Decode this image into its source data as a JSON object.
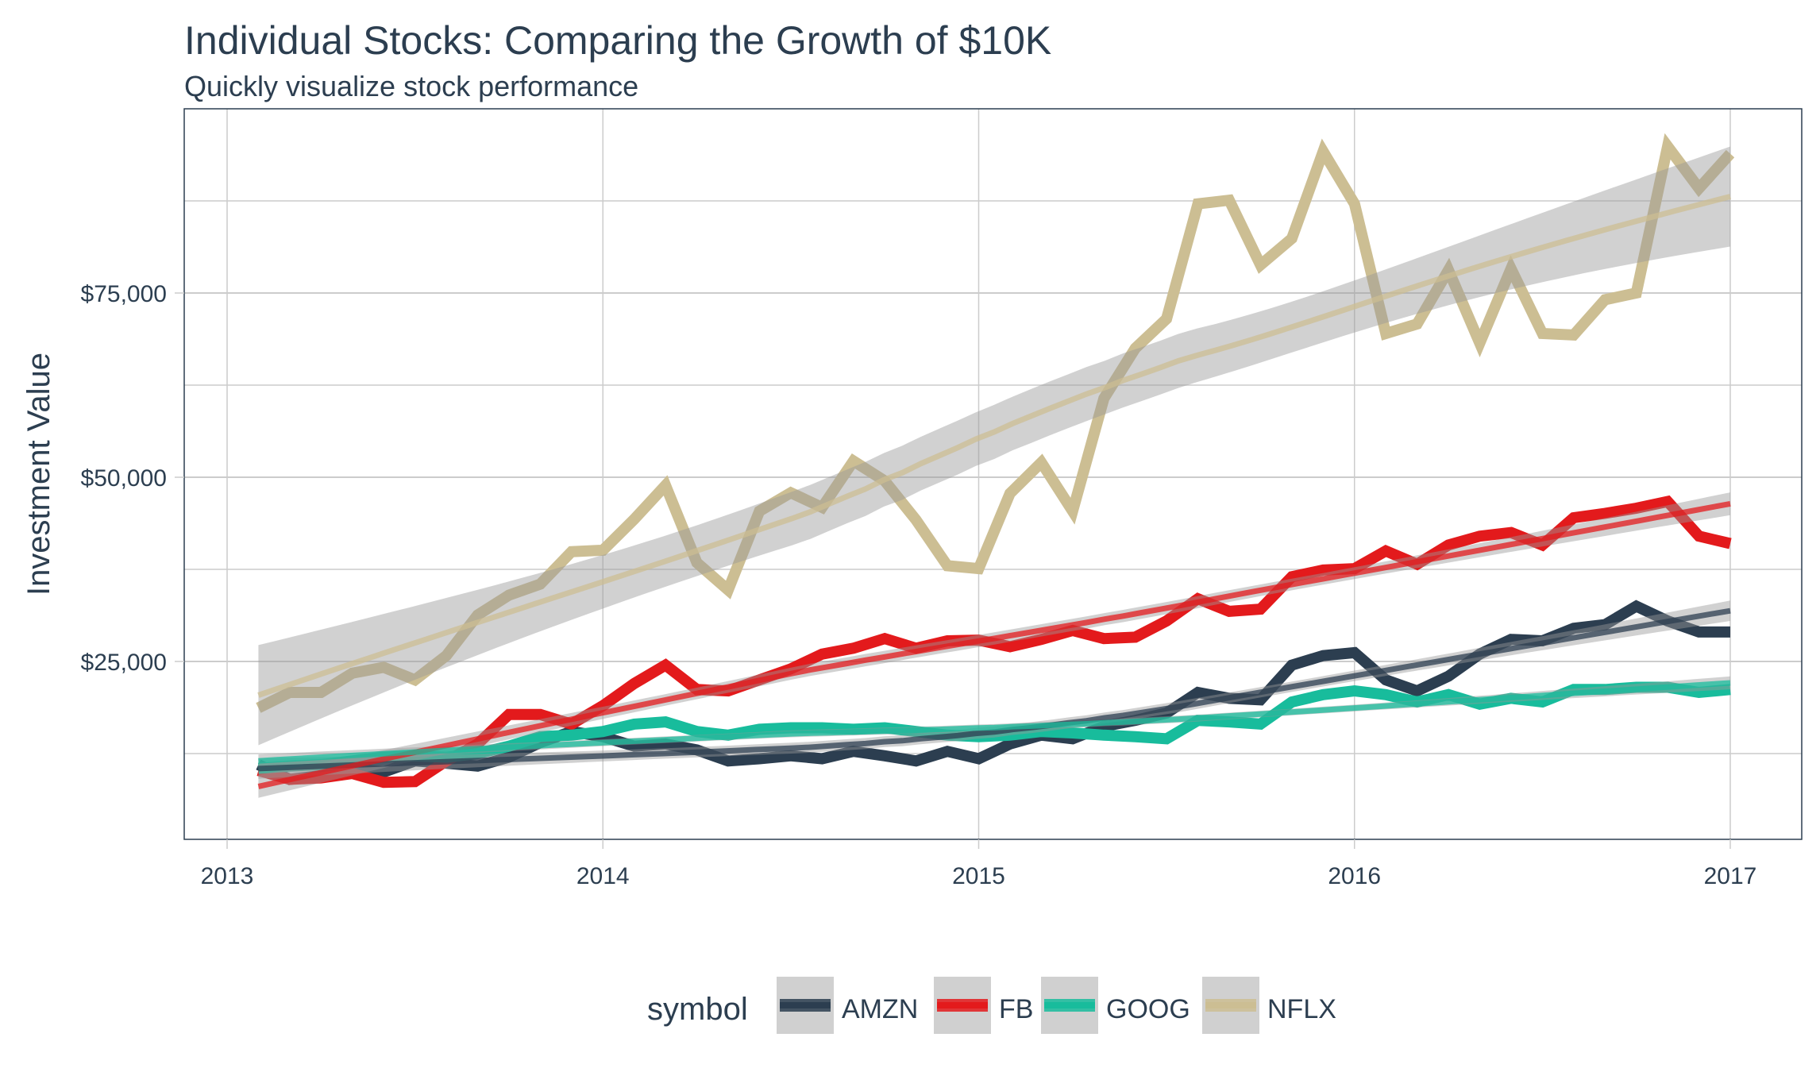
{
  "chart_data": {
    "type": "line",
    "title": "Individual Stocks: Comparing the Growth of $10K",
    "subtitle": "Quickly visualize stock performance",
    "xlabel": "",
    "ylabel": "Investment Value",
    "x_ticks": [
      "2013",
      "2014",
      "2015",
      "2016",
      "2017"
    ],
    "y_ticks": [
      {
        "value": 25000,
        "label": "$25,000"
      },
      {
        "value": 50000,
        "label": "$50,000"
      },
      {
        "value": 75000,
        "label": "$75,000"
      }
    ],
    "xlim": [
      2012.9,
      2017.25
    ],
    "ylim": [
      6000,
      98000
    ],
    "grid": true,
    "legend": {
      "title": "symbol",
      "position": "bottom"
    },
    "smooth": {
      "method": "loess",
      "confidence_band": true
    },
    "x": [
      "2013-02",
      "2013-03",
      "2013-04",
      "2013-05",
      "2013-06",
      "2013-07",
      "2013-08",
      "2013-09",
      "2013-10",
      "2013-11",
      "2013-12",
      "2014-01",
      "2014-02",
      "2014-03",
      "2014-04",
      "2014-05",
      "2014-06",
      "2014-07",
      "2014-08",
      "2014-09",
      "2014-10",
      "2014-11",
      "2014-12",
      "2015-01",
      "2015-02",
      "2015-03",
      "2015-04",
      "2015-05",
      "2015-06",
      "2015-07",
      "2015-08",
      "2015-09",
      "2015-10",
      "2015-11",
      "2015-12",
      "2016-01",
      "2016-02",
      "2016-03",
      "2016-04",
      "2016-05",
      "2016-06",
      "2016-07",
      "2016-08",
      "2016-09",
      "2016-10",
      "2016-11",
      "2016-12",
      "2017-01"
    ],
    "series": [
      {
        "name": "AMZN",
        "color": "#2c3e50",
        "values": [
          11000,
          9000,
          9500,
          10500,
          10000,
          11500,
          11200,
          10800,
          12000,
          14000,
          15500,
          14800,
          13500,
          13800,
          13000,
          11500,
          11800,
          12200,
          11800,
          12800,
          12200,
          11500,
          12800,
          11800,
          13800,
          15000,
          14500,
          16200,
          17000,
          18000,
          20800,
          20000,
          19800,
          24500,
          25800,
          26200,
          22500,
          21000,
          23000,
          26000,
          28000,
          27800,
          29500,
          30000,
          32500,
          30500,
          29000,
          29000
        ]
      },
      {
        "name": "FB",
        "color": "#e31a1c",
        "values": [
          10200,
          9000,
          9200,
          9800,
          8600,
          8700,
          11500,
          13800,
          17800,
          17800,
          16500,
          19000,
          22000,
          24500,
          21200,
          21000,
          22500,
          24000,
          26000,
          26800,
          28100,
          26800,
          27800,
          27900,
          27000,
          28000,
          29200,
          28100,
          28300,
          30500,
          33500,
          31800,
          32100,
          36500,
          37400,
          37600,
          40000,
          38200,
          40800,
          42000,
          42500,
          40800,
          44500,
          45100,
          45800,
          46700,
          42000,
          41000
        ]
      },
      {
        "name": "GOOG",
        "color": "#18bc9c",
        "values": [
          10500,
          10800,
          11000,
          11500,
          12000,
          12200,
          12000,
          12500,
          13500,
          14800,
          15000,
          15500,
          16500,
          16800,
          15500,
          15000,
          15800,
          16000,
          16000,
          15800,
          16000,
          15500,
          15000,
          14800,
          15000,
          15500,
          15300,
          15000,
          14800,
          14500,
          17000,
          16800,
          16500,
          19500,
          20500,
          21000,
          20500,
          19500,
          20500,
          19200,
          20000,
          19500,
          21200,
          21200,
          21500,
          21500,
          20800,
          21200
        ]
      },
      {
        "name": "NFLX",
        "color": "#ccbe93",
        "values": [
          18700,
          20800,
          20800,
          23400,
          24200,
          22500,
          25800,
          31300,
          34000,
          35500,
          39900,
          40100,
          44300,
          48900,
          38400,
          34700,
          45400,
          47900,
          45900,
          52200,
          49500,
          44200,
          38000,
          37600,
          47800,
          52000,
          45400,
          60700,
          67500,
          71500,
          87100,
          87600,
          78800,
          82400,
          94200,
          87100,
          69500,
          70800,
          78100,
          68200,
          78300,
          69500,
          69300,
          74100,
          75000,
          94900,
          89200,
          93900
        ]
      }
    ]
  }
}
